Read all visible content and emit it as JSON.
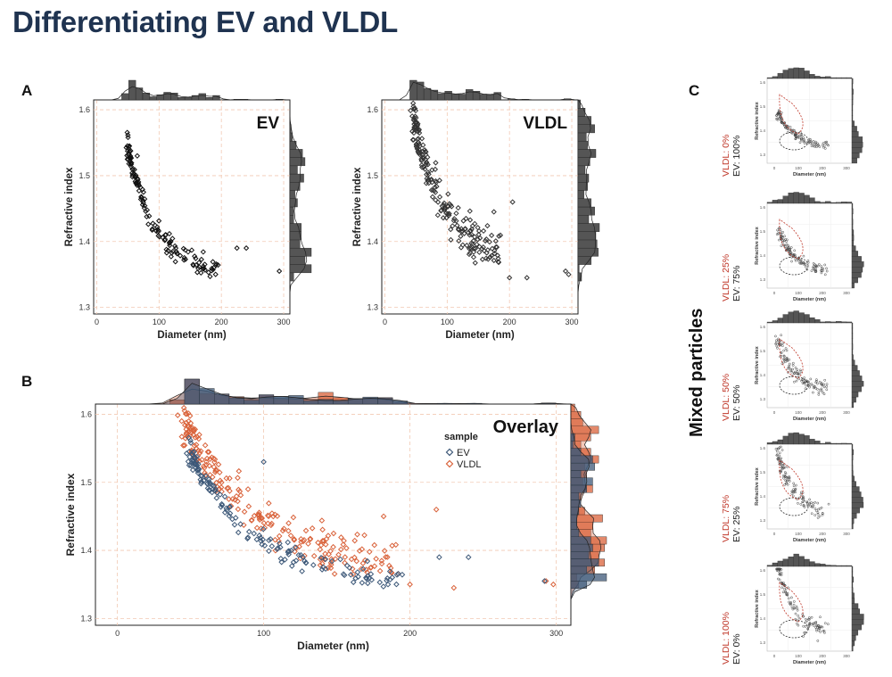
{
  "page": {
    "title": "Differentiating EV and VLDL"
  },
  "labels": {
    "panel_a": "A",
    "panel_b": "B",
    "panel_c": "C",
    "mixed_particles": "Mixed particles"
  },
  "colors": {
    "ev": "#3d5878",
    "vldl": "#d9623a",
    "grid": "#f2c9b3",
    "hist_dark": "#555555",
    "dashed": "#333333",
    "red_dashed": "#c0392b"
  },
  "chart_data": [
    {
      "id": "ev",
      "type": "scatter",
      "title": "EV",
      "xlabel": "Diameter (nm)",
      "ylabel": "Refractive index",
      "xlim": [
        -5,
        310
      ],
      "ylim": [
        1.29,
        1.615
      ],
      "xticks": [
        0,
        100,
        200,
        300
      ],
      "xtick_labels": [
        "0",
        "100",
        "200",
        "300"
      ],
      "yticks": [
        1.3,
        1.4,
        1.5,
        1.6
      ],
      "ytick_labels": [
        "1.3",
        "1.4",
        "1.5",
        "1.6"
      ],
      "series": [
        {
          "name": "EV",
          "seed": 11,
          "n": 140,
          "d_range": [
            50,
            195
          ],
          "ri_base": 1.35,
          "ri_amp": 0.19,
          "ri_decay": 45,
          "noise": 0.018,
          "outliers": [
            [
              65,
              1.53
            ],
            [
              225,
              1.39
            ],
            [
              240,
              1.39
            ],
            [
              293,
              1.355
            ],
            [
              75,
              1.475
            ],
            [
              110,
              1.41
            ]
          ]
        }
      ]
    },
    {
      "id": "vldl",
      "type": "scatter",
      "title": "VLDL",
      "xlabel": "Diameter (nm)",
      "ylabel": "Refractive index",
      "xlim": [
        -5,
        310
      ],
      "ylim": [
        1.29,
        1.615
      ],
      "xticks": [
        0,
        100,
        200,
        300
      ],
      "xtick_labels": [
        "0",
        "100",
        "200",
        "300"
      ],
      "yticks": [
        1.3,
        1.4,
        1.5,
        1.6
      ],
      "ytick_labels": [
        "1.3",
        "1.4",
        "1.5",
        "1.6"
      ],
      "series": [
        {
          "name": "VLDL",
          "seed": 23,
          "n": 210,
          "d_range": [
            45,
            185
          ],
          "ri_base": 1.37,
          "ri_amp": 0.22,
          "ri_decay": 50,
          "noise": 0.03,
          "outliers": [
            [
              50,
              1.58
            ],
            [
              55,
              1.57
            ],
            [
              200,
              1.345
            ],
            [
              228,
              1.345
            ],
            [
              290,
              1.355
            ],
            [
              295,
              1.35
            ],
            [
              175,
              1.445
            ],
            [
              205,
              1.46
            ]
          ]
        }
      ]
    },
    {
      "id": "overlay",
      "type": "scatter",
      "title": "Overlay",
      "xlabel": "Diameter (nm)",
      "ylabel": "Refractive index",
      "xlim": [
        -15,
        310
      ],
      "ylim": [
        1.29,
        1.615
      ],
      "xticks": [
        0,
        100,
        200,
        300
      ],
      "xtick_labels": [
        "0",
        "100",
        "200",
        "300"
      ],
      "yticks": [
        1.3,
        1.4,
        1.5,
        1.6
      ],
      "ytick_labels": [
        "1.3",
        "1.4",
        "1.5",
        "1.6"
      ],
      "legend": {
        "title": "sample",
        "entries": [
          "EV",
          "VLDL"
        ],
        "position": "top-right"
      },
      "series": [
        {
          "name": "VLDL",
          "seed": 23,
          "n": 230,
          "d_range": [
            45,
            190
          ],
          "ri_base": 1.37,
          "ri_amp": 0.22,
          "ri_decay": 50,
          "noise": 0.03,
          "outliers": [
            [
              50,
              1.58
            ],
            [
              56,
              1.57
            ],
            [
              200,
              1.35
            ],
            [
              230,
              1.345
            ],
            [
              293,
              1.355
            ],
            [
              298,
              1.35
            ],
            [
              182,
              1.45
            ],
            [
              218,
              1.46
            ]
          ]
        },
        {
          "name": "EV",
          "seed": 11,
          "n": 150,
          "d_range": [
            50,
            195
          ],
          "ri_base": 1.35,
          "ri_amp": 0.19,
          "ri_decay": 45,
          "noise": 0.018,
          "outliers": [
            [
              100,
              1.53
            ],
            [
              220,
              1.39
            ],
            [
              240,
              1.39
            ],
            [
              292,
              1.355
            ],
            [
              170,
              1.36
            ],
            [
              185,
              1.35
            ]
          ]
        }
      ]
    },
    {
      "id": "mix",
      "type": "scatter",
      "xlabel": "Diameter (nm)",
      "ylabel": "Refractive index",
      "xtick_labels": [
        "0",
        "100",
        "200",
        "300"
      ],
      "ytick_labels": [
        "1.3",
        "1.4",
        "1.5",
        "1.6"
      ],
      "panels": [
        {
          "vldl_label": "VLDL:",
          "vldl_pct": "0%",
          "ev_label": "EV:",
          "ev_pct": "100%",
          "seed": 31
        },
        {
          "vldl_label": "VLDL:",
          "vldl_pct": "25%",
          "ev_label": "EV:",
          "ev_pct": "75%",
          "seed": 37
        },
        {
          "vldl_label": "VLDL:",
          "vldl_pct": "50%",
          "ev_label": "EV:",
          "ev_pct": "50%",
          "seed": 41
        },
        {
          "vldl_label": "VLDL:",
          "vldl_pct": "75%",
          "ev_label": "EV:",
          "ev_pct": "25%",
          "seed": 43
        },
        {
          "vldl_label": "VLDL:",
          "vldl_pct": "100%",
          "ev_label": "EV:",
          "ev_pct": "0%",
          "seed": 47
        }
      ]
    }
  ]
}
